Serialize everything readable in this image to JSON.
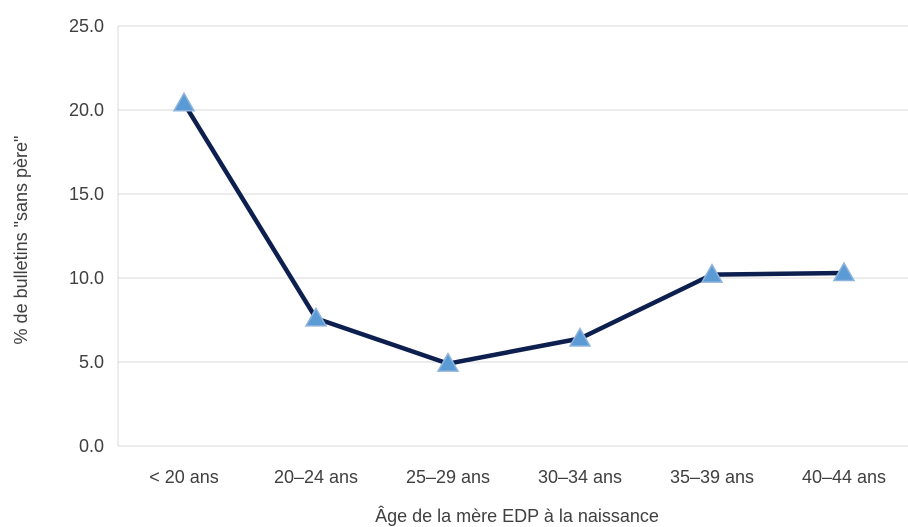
{
  "chart_data": {
    "type": "line",
    "title": "",
    "xlabel": "Âge de la mère EDP à la naissance",
    "ylabel": "% de bulletins \"sans père\"",
    "categories": [
      "< 20 ans",
      "20–24 ans",
      "25–29 ans",
      "30–34 ans",
      "35–39 ans",
      "40–44 ans"
    ],
    "series": [
      {
        "values": [
          20.4,
          7.6,
          4.9,
          6.4,
          10.2,
          10.3
        ]
      }
    ],
    "ylim": [
      0,
      25
    ],
    "yticks": [
      "0.0",
      "5.0",
      "10.0",
      "15.0",
      "20.0",
      "25.0"
    ],
    "grid": true,
    "legend": "none",
    "colors": {
      "line": "#0d1f4f",
      "marker": "#5b9bd5",
      "grid": "#d9d9d9",
      "text": "#404040"
    }
  }
}
